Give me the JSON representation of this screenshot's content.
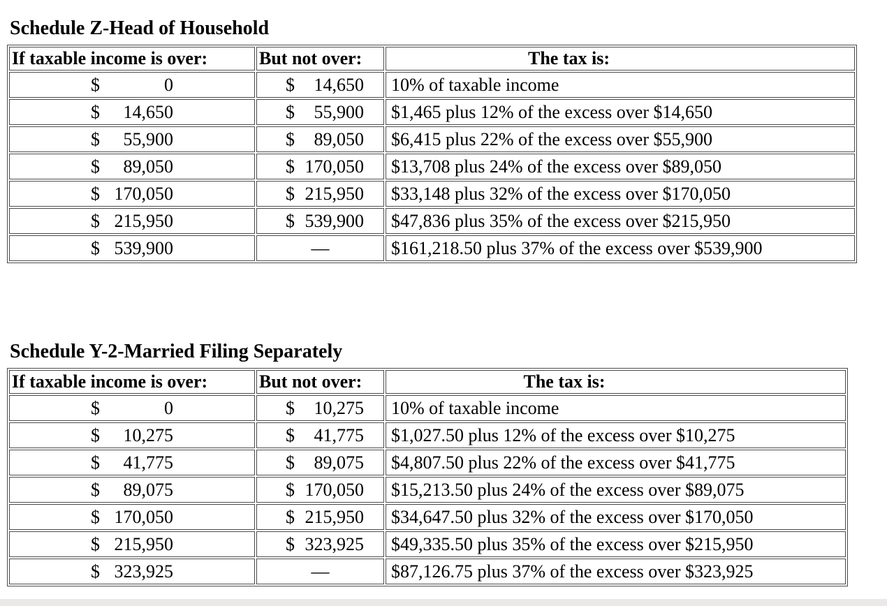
{
  "currency_symbol": "$",
  "dash_symbol": "—",
  "colors": {
    "background": "#ffffff",
    "text": "#000000",
    "table_border": "#4a4a4a",
    "bottom_strip": "#ebe9e8"
  },
  "schedules": [
    {
      "title": "Schedule Z-Head of Household",
      "headers": {
        "over": "If taxable income is over:",
        "not_over": "But not over:",
        "tax": "The tax is:"
      },
      "rows": [
        {
          "over": "0",
          "not_over": "14,650",
          "tax": "10% of taxable income"
        },
        {
          "over": "14,650",
          "not_over": "55,900",
          "tax": "$1,465 plus 12% of the excess over $14,650"
        },
        {
          "over": "55,900",
          "not_over": "89,050",
          "tax": "$6,415 plus 22% of the excess over $55,900"
        },
        {
          "over": "89,050",
          "not_over": "170,050",
          "tax": "$13,708 plus 24% of the excess over $89,050"
        },
        {
          "over": "170,050",
          "not_over": "215,950",
          "tax": "$33,148 plus 32% of the excess over $170,050"
        },
        {
          "over": "215,950",
          "not_over": "539,900",
          "tax": "$47,836 plus 35% of the excess over $215,950"
        },
        {
          "over": "539,900",
          "not_over": "—",
          "tax": "$161,218.50 plus 37% of the excess over $539,900"
        }
      ]
    },
    {
      "title": "Schedule Y-2-Married Filing Separately",
      "headers": {
        "over": "If taxable income is over:",
        "not_over": "But not over:",
        "tax": "The tax is:"
      },
      "rows": [
        {
          "over": "0",
          "not_over": "10,275",
          "tax": "10% of taxable income"
        },
        {
          "over": "10,275",
          "not_over": "41,775",
          "tax": "$1,027.50 plus 12% of the excess over $10,275"
        },
        {
          "over": "41,775",
          "not_over": "89,075",
          "tax": "$4,807.50 plus 22% of the excess over $41,775"
        },
        {
          "over": "89,075",
          "not_over": "170,050",
          "tax": "$15,213.50 plus 24% of the excess over $89,075"
        },
        {
          "over": "170,050",
          "not_over": "215,950",
          "tax": "$34,647.50 plus 32% of the excess over $170,050"
        },
        {
          "over": "215,950",
          "not_over": "323,925",
          "tax": "$49,335.50 plus 35% of the excess over $215,950"
        },
        {
          "over": "323,925",
          "not_over": "—",
          "tax": "$87,126.75 plus 37% of the excess over $323,925"
        }
      ]
    }
  ]
}
